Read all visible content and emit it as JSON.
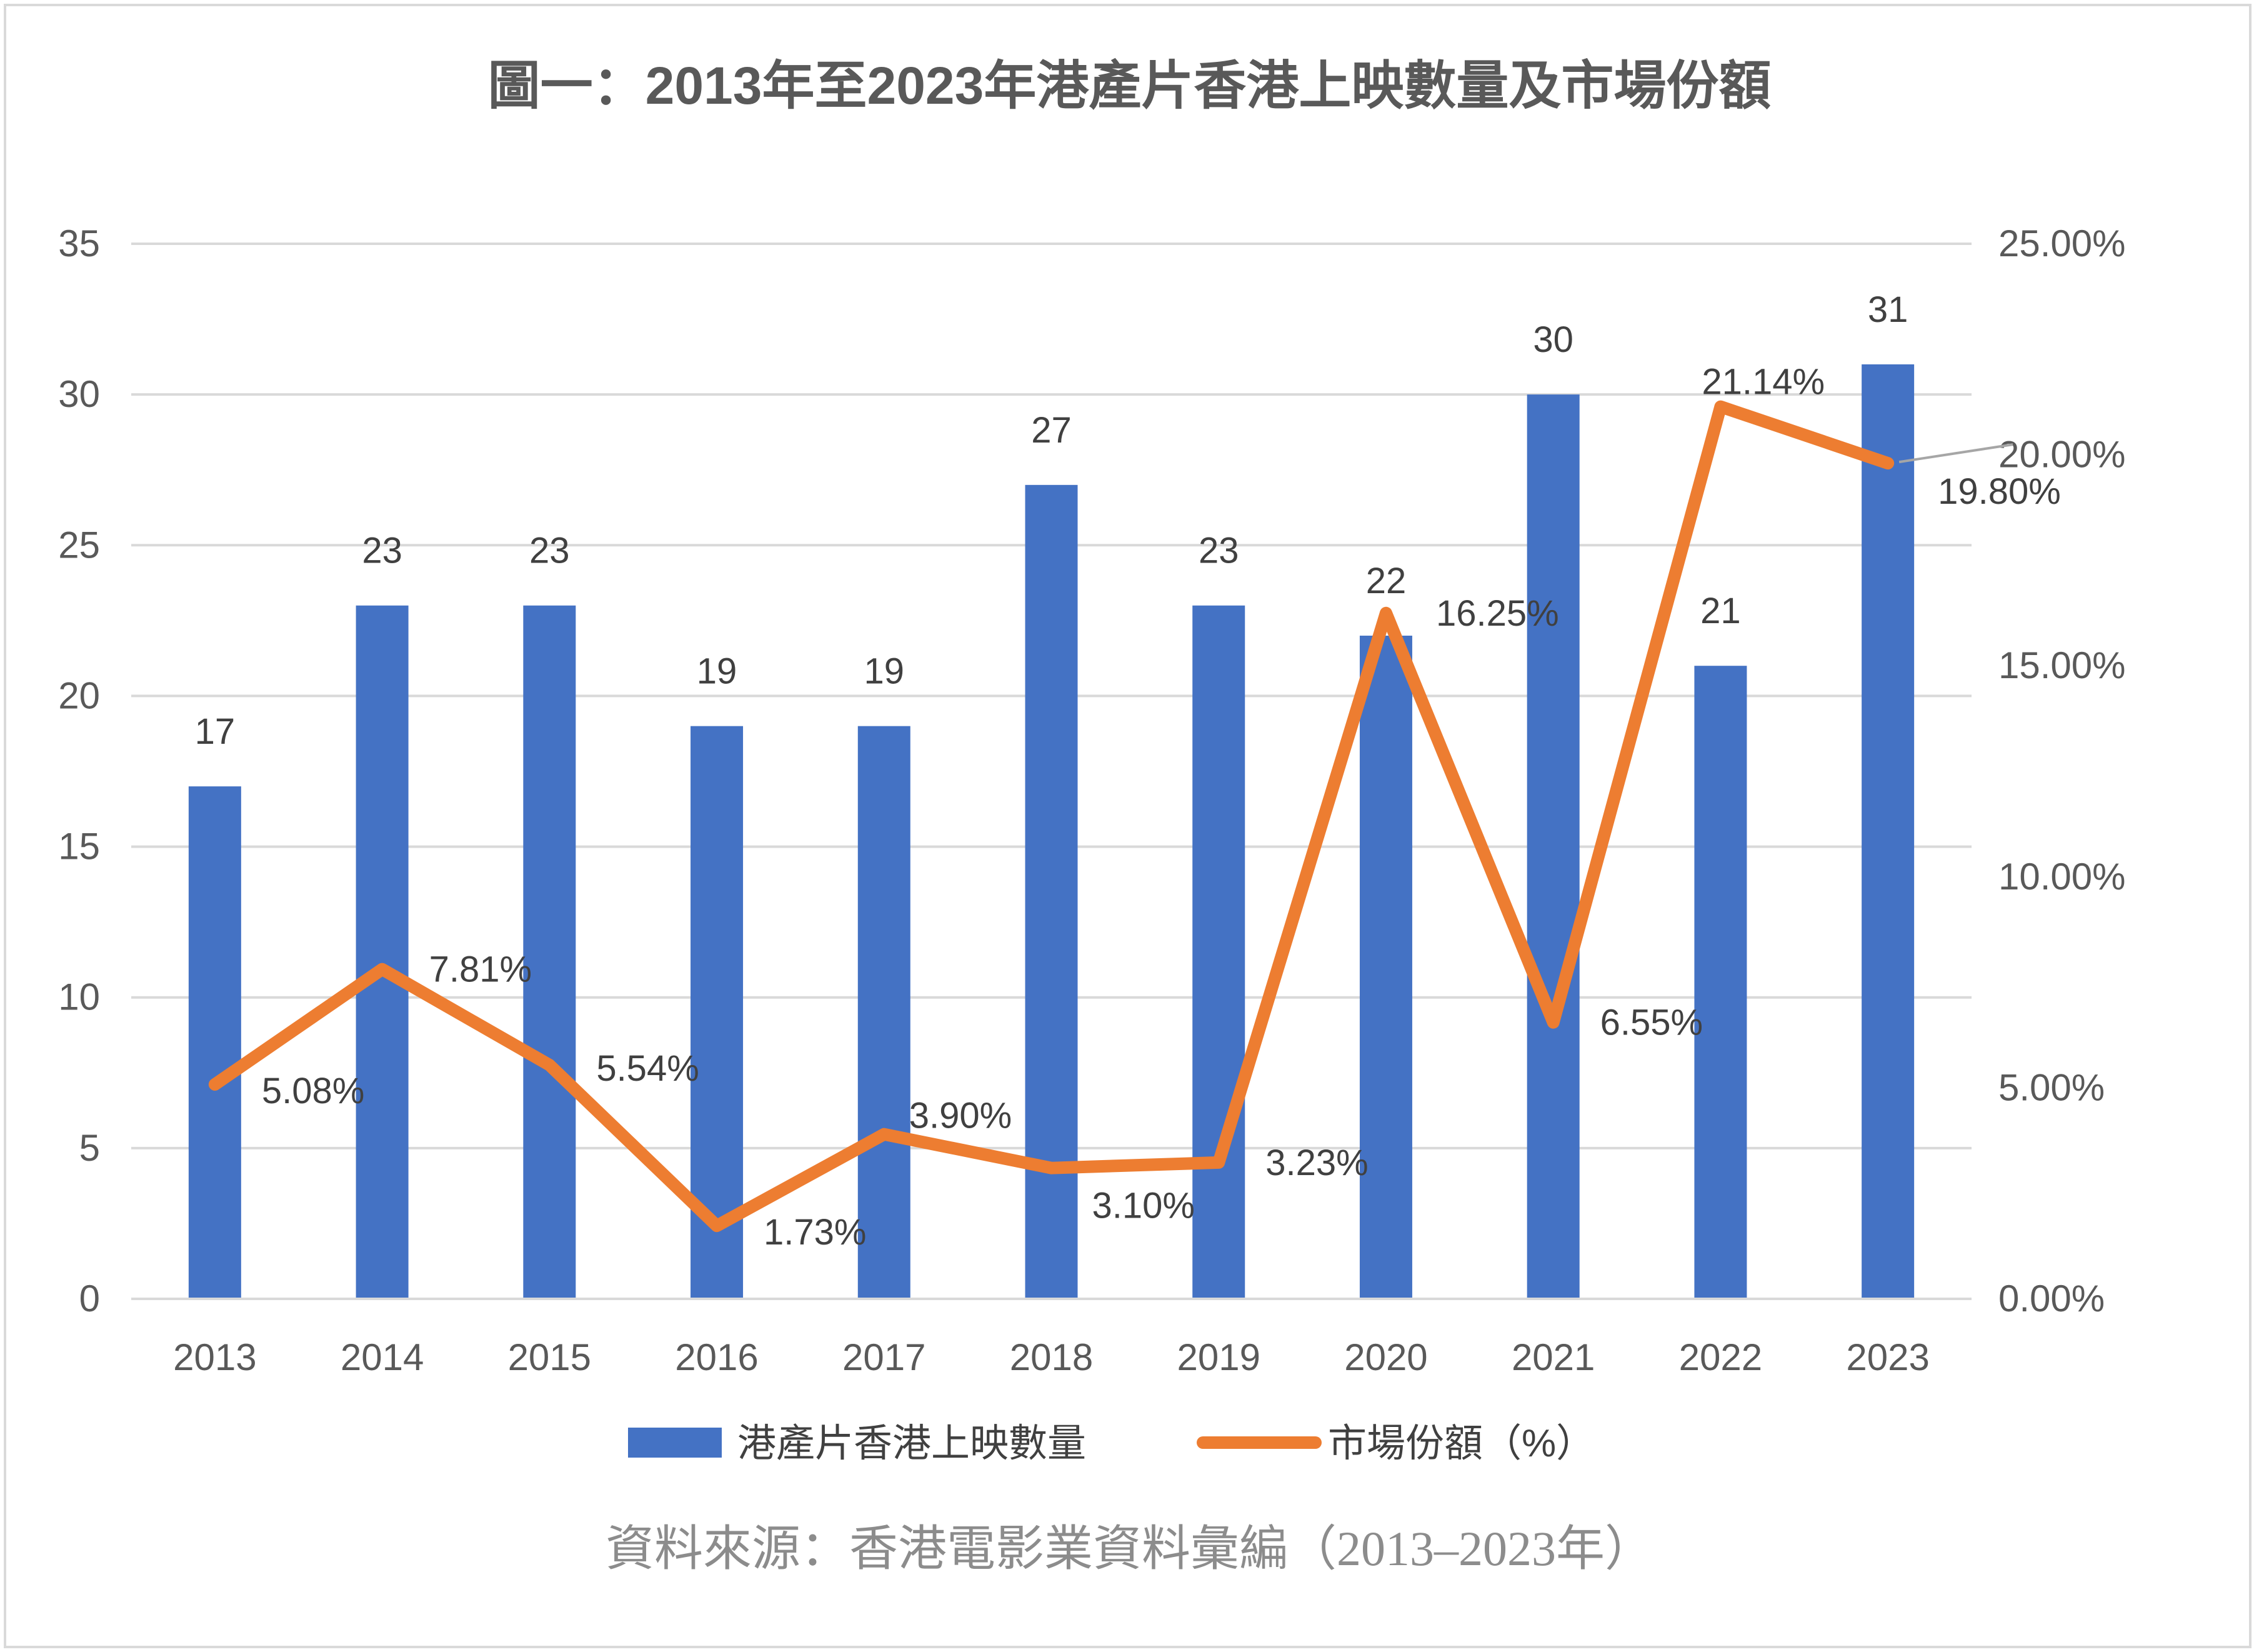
{
  "title": "圖一：2013年至2023年港產片香港上映數量及市場份額",
  "source": "資料來源：香港電影業資料彙編（2013–2023年）",
  "colors": {
    "bar": "#4472c4",
    "line": "#ed7d31",
    "grid": "#d9d9d9",
    "axis_text": "#595959"
  },
  "chart_data": {
    "type": "bar",
    "categories": [
      "2013",
      "2014",
      "2015",
      "2016",
      "2017",
      "2018",
      "2019",
      "2020",
      "2021",
      "2022",
      "2023"
    ],
    "series": [
      {
        "name": "港產片香港上映數量",
        "type": "bar",
        "axis": "left",
        "values": [
          17,
          23,
          23,
          19,
          19,
          27,
          23,
          22,
          30,
          21,
          31
        ],
        "labels": [
          "17",
          "23",
          "23",
          "19",
          "19",
          "27",
          "23",
          "22",
          "30",
          "21",
          "31"
        ]
      },
      {
        "name": "市場份額（%）",
        "type": "line",
        "axis": "right",
        "values": [
          5.08,
          7.81,
          5.54,
          1.73,
          3.9,
          3.1,
          3.23,
          16.25,
          6.55,
          21.14,
          19.8
        ],
        "labels": [
          "5.08%",
          "7.81%",
          "5.54%",
          "1.73%",
          "3.90%",
          "3.10%",
          "3.23%",
          "16.25%",
          "6.55%",
          "21.14%",
          "19.80%"
        ]
      }
    ],
    "y_left": {
      "min": 0,
      "max": 35,
      "ticks": [
        "0",
        "5",
        "10",
        "15",
        "20",
        "25",
        "30",
        "35"
      ]
    },
    "y_right": {
      "min": 0,
      "max": 25,
      "ticks": [
        "0.00%",
        "5.00%",
        "10.00%",
        "15.00%",
        "20.00%",
        "25.00%"
      ]
    },
    "grid": true,
    "legend": "bottom"
  }
}
